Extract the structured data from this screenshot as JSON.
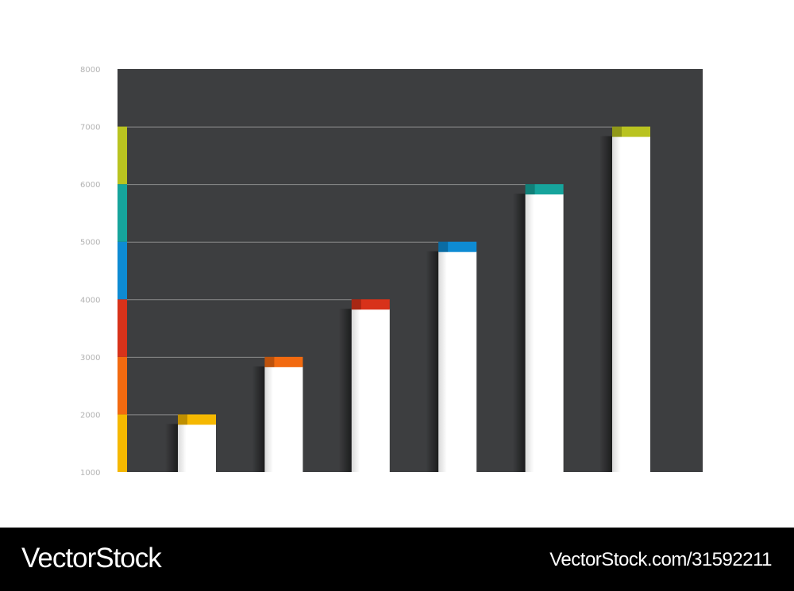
{
  "chart_data": {
    "type": "bar",
    "categories": [
      "",
      "",
      "",
      "",
      "",
      ""
    ],
    "values": [
      2000,
      3000,
      4000,
      5000,
      6000,
      7000
    ],
    "colors": [
      "#f5b800",
      "#f26a10",
      "#d8321a",
      "#0e8bd3",
      "#16a49c",
      "#b9c320"
    ],
    "ylim": [
      1000,
      8000
    ],
    "yticks": [
      "1000",
      "2000",
      "3000",
      "4000",
      "5000",
      "6000",
      "7000",
      "8000"
    ],
    "background": "#3d3e40",
    "title": "",
    "xlabel": "",
    "ylabel": "",
    "grid": false,
    "legend": "none"
  },
  "watermark": {
    "brand": "VectorStock",
    "url": "VectorStock.com/31592211"
  }
}
